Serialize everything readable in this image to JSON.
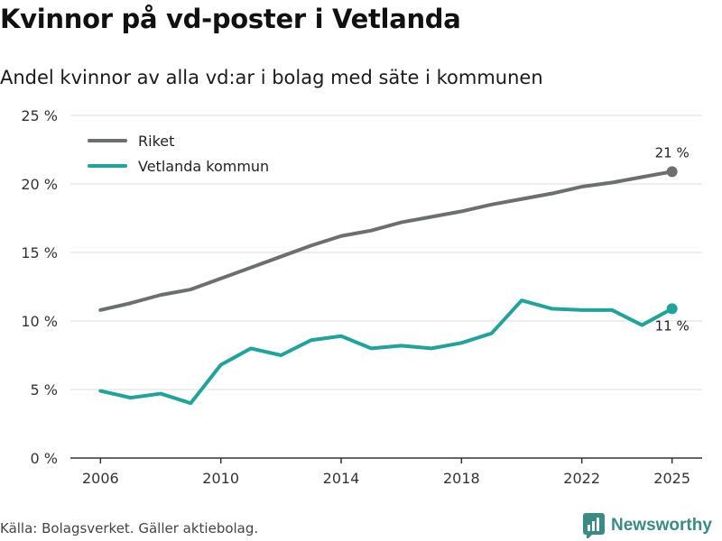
{
  "header": {
    "title": "Kvinnor på vd-poster i Vetlanda",
    "subtitle": "Andel kvinnor av alla vd:ar i bolag med säte i kommunen"
  },
  "footer": {
    "source": "Källa: Bolagsverket. Gäller aktiebolag.",
    "brand": "Newsworthy"
  },
  "colors": {
    "riket": "#6d6e70",
    "vetlanda": "#1fa39a",
    "grid": "#dcdcdc",
    "axis": "#333333",
    "brand": "#3a8b84"
  },
  "chart_data": {
    "type": "line",
    "title": "Andel kvinnor av alla vd:ar i bolag med säte i kommunen",
    "xlabel": "",
    "ylabel": "",
    "x": [
      2006,
      2007,
      2008,
      2009,
      2010,
      2011,
      2012,
      2013,
      2014,
      2015,
      2016,
      2017,
      2018,
      2019,
      2020,
      2021,
      2022,
      2023,
      2024,
      2025
    ],
    "xticks": [
      2006,
      2010,
      2014,
      2018,
      2022,
      2025
    ],
    "xlim": [
      2005,
      2026
    ],
    "ylim": [
      0,
      25
    ],
    "yticks": [
      0,
      5,
      10,
      15,
      20,
      25
    ],
    "ytick_labels": [
      "0 %",
      "5 %",
      "10 %",
      "15 %",
      "20 %",
      "25 %"
    ],
    "grid": true,
    "legend_position": "top-left",
    "series": [
      {
        "name": "Riket",
        "color": "#6d6e70",
        "values": [
          10.8,
          11.3,
          11.9,
          12.3,
          13.1,
          13.9,
          14.7,
          15.5,
          16.2,
          16.6,
          17.2,
          17.6,
          18.0,
          18.5,
          18.9,
          19.3,
          19.8,
          20.1,
          20.5,
          20.9
        ],
        "end_label": "21 %"
      },
      {
        "name": "Vetlanda kommun",
        "color": "#1fa39a",
        "values": [
          4.9,
          4.4,
          4.7,
          4.0,
          6.8,
          8.0,
          7.5,
          8.6,
          8.9,
          8.0,
          8.2,
          8.0,
          8.4,
          9.1,
          11.5,
          10.9,
          10.8,
          10.8,
          9.7,
          10.9
        ],
        "end_label": "11 %"
      }
    ]
  }
}
